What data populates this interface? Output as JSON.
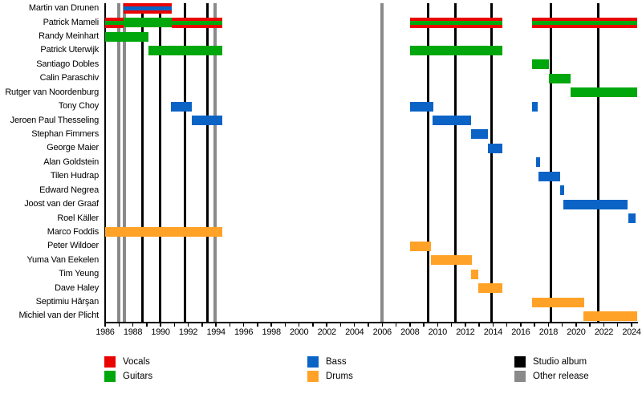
{
  "chart_data": {
    "type": "timeline",
    "title": "",
    "x_axis": {
      "start": 1986,
      "end": 2024.4,
      "label_years": [
        1986,
        1988,
        1990,
        1992,
        1994,
        1996,
        1998,
        2000,
        2002,
        2004,
        2006,
        2008,
        2010,
        2012,
        2014,
        2016,
        2018,
        2020,
        2022,
        2024
      ],
      "minor_tick_every": 1
    },
    "colors": {
      "vocals": "#E90301",
      "guitars": "#00A70C",
      "bass": "#0B63C5",
      "drums": "#FFA227",
      "album": "#000000",
      "other": "#8A8A8A"
    },
    "legend": [
      {
        "label": "Vocals",
        "key": "vocals",
        "col": 0,
        "row": 0
      },
      {
        "label": "Guitars",
        "key": "guitars",
        "col": 0,
        "row": 1
      },
      {
        "label": "Bass",
        "key": "bass",
        "col": 1,
        "row": 0
      },
      {
        "label": "Drums",
        "key": "drums",
        "col": 1,
        "row": 1
      },
      {
        "label": "Studio album",
        "key": "album",
        "col": 2,
        "row": 0
      },
      {
        "label": "Other release",
        "key": "other",
        "col": 2,
        "row": 1
      }
    ],
    "events": [
      {
        "year": 1987.0,
        "type": "other"
      },
      {
        "year": 1987.37,
        "type": "other"
      },
      {
        "year": 1988.7,
        "type": "album"
      },
      {
        "year": 1989.95,
        "type": "album"
      },
      {
        "year": 1991.75,
        "type": "album"
      },
      {
        "year": 1993.4,
        "type": "album"
      },
      {
        "year": 1993.95,
        "type": "other"
      },
      {
        "year": 2006.0,
        "type": "other"
      },
      {
        "year": 2009.3,
        "type": "album"
      },
      {
        "year": 2011.3,
        "type": "album"
      },
      {
        "year": 2013.9,
        "type": "album"
      },
      {
        "year": 2018.15,
        "type": "album"
      },
      {
        "year": 2021.6,
        "type": "album"
      }
    ],
    "members": [
      {
        "name": "Martin van Drunen",
        "bars": [
          {
            "start": 1987.35,
            "end": 1990.8,
            "roles": [
              "vocals",
              "bass"
            ]
          }
        ]
      },
      {
        "name": "Patrick Mameli",
        "bars": [
          {
            "start": 1986.0,
            "end": 1987.35,
            "roles": [
              "vocals",
              "guitars"
            ]
          },
          {
            "start": 1987.35,
            "end": 1990.8,
            "roles": [
              "guitars"
            ]
          },
          {
            "start": 1990.8,
            "end": 1994.45,
            "roles": [
              "vocals",
              "guitars"
            ]
          },
          {
            "start": 2008.0,
            "end": 2014.7,
            "roles": [
              "vocals",
              "guitars"
            ]
          },
          {
            "start": 2016.8,
            "end": 2024.4,
            "roles": [
              "vocals",
              "guitars"
            ]
          }
        ]
      },
      {
        "name": "Randy Meinhart",
        "bars": [
          {
            "start": 1986.0,
            "end": 1989.1,
            "roles": [
              "guitars"
            ]
          }
        ]
      },
      {
        "name": "Patrick Uterwijk",
        "bars": [
          {
            "start": 1989.1,
            "end": 1994.45,
            "roles": [
              "guitars"
            ]
          },
          {
            "start": 2008.0,
            "end": 2014.7,
            "roles": [
              "guitars"
            ]
          }
        ]
      },
      {
        "name": "Santiago Dobles",
        "bars": [
          {
            "start": 2016.8,
            "end": 2018.05,
            "roles": [
              "guitars"
            ]
          }
        ]
      },
      {
        "name": "Calin Paraschiv",
        "bars": [
          {
            "start": 2018.05,
            "end": 2019.6,
            "roles": [
              "guitars"
            ]
          }
        ]
      },
      {
        "name": "Rutger van Noordenburg",
        "bars": [
          {
            "start": 2019.6,
            "end": 2024.4,
            "roles": [
              "guitars"
            ]
          }
        ]
      },
      {
        "name": "Tony Choy",
        "bars": [
          {
            "start": 1990.75,
            "end": 1992.25,
            "roles": [
              "bass"
            ]
          },
          {
            "start": 2008.0,
            "end": 2009.7,
            "roles": [
              "bass"
            ]
          },
          {
            "start": 2016.8,
            "end": 2017.2,
            "roles": [
              "bass"
            ]
          }
        ]
      },
      {
        "name": "Jeroen Paul Thesseling",
        "bars": [
          {
            "start": 1992.25,
            "end": 1994.45,
            "roles": [
              "bass"
            ]
          },
          {
            "start": 2009.65,
            "end": 2012.4,
            "roles": [
              "bass"
            ]
          }
        ]
      },
      {
        "name": "Stephan Fimmers",
        "bars": [
          {
            "start": 2012.4,
            "end": 2013.65,
            "roles": [
              "bass"
            ]
          }
        ]
      },
      {
        "name": "George Maier",
        "bars": [
          {
            "start": 2013.65,
            "end": 2014.7,
            "roles": [
              "bass"
            ]
          }
        ]
      },
      {
        "name": "Alan Goldstein",
        "bars": [
          {
            "start": 2017.1,
            "end": 2017.4,
            "roles": [
              "bass"
            ]
          }
        ]
      },
      {
        "name": "Tilen Hudrap",
        "bars": [
          {
            "start": 2017.3,
            "end": 2018.85,
            "roles": [
              "bass"
            ]
          }
        ]
      },
      {
        "name": "Edward Negrea",
        "bars": [
          {
            "start": 2018.85,
            "end": 2019.15,
            "roles": [
              "bass"
            ]
          }
        ]
      },
      {
        "name": "Joost van der Graaf",
        "bars": [
          {
            "start": 2019.1,
            "end": 2023.7,
            "roles": [
              "bass"
            ]
          }
        ]
      },
      {
        "name": "Roel Käller",
        "bars": [
          {
            "start": 2023.75,
            "end": 2024.3,
            "roles": [
              "bass"
            ]
          }
        ]
      },
      {
        "name": "Marco Foddis",
        "bars": [
          {
            "start": 1986.0,
            "end": 1994.45,
            "roles": [
              "drums"
            ]
          }
        ]
      },
      {
        "name": "Peter Wildoer",
        "bars": [
          {
            "start": 2008.0,
            "end": 2009.5,
            "roles": [
              "drums"
            ]
          }
        ]
      },
      {
        "name": "Yuma Van Eekelen",
        "bars": [
          {
            "start": 2009.5,
            "end": 2012.45,
            "roles": [
              "drums"
            ]
          }
        ]
      },
      {
        "name": "Tim Yeung",
        "bars": [
          {
            "start": 2012.4,
            "end": 2012.95,
            "roles": [
              "drums"
            ]
          }
        ]
      },
      {
        "name": "Dave Haley",
        "bars": [
          {
            "start": 2012.95,
            "end": 2014.7,
            "roles": [
              "drums"
            ]
          }
        ]
      },
      {
        "name": "Septimiu Hărşan",
        "bars": [
          {
            "start": 2016.8,
            "end": 2020.6,
            "roles": [
              "drums"
            ]
          }
        ]
      },
      {
        "name": "Michiel van der Plicht",
        "bars": [
          {
            "start": 2020.5,
            "end": 2024.4,
            "roles": [
              "drums"
            ]
          }
        ]
      }
    ]
  }
}
